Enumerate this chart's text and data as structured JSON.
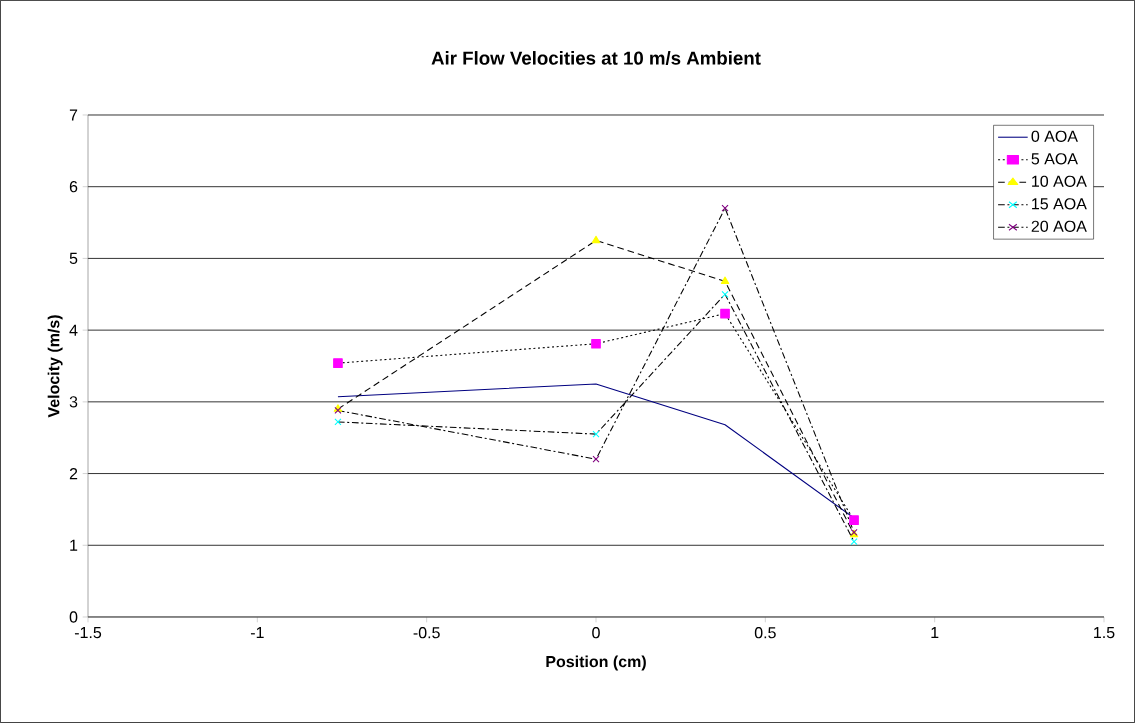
{
  "chart_data": {
    "type": "line",
    "title": "Air Flow Velocities at 10 m/s Ambient",
    "xlabel": "Position (cm)",
    "ylabel": "Velocity (m/s)",
    "x": [
      -0.762,
      0,
      0.381,
      0.762
    ],
    "series": [
      {
        "name": "0 AOA",
        "color": "#000080",
        "marker": "none",
        "line_style": "solid",
        "values": [
          3.07,
          3.25,
          2.68,
          1.38
        ]
      },
      {
        "name": "5 AOA",
        "color": "#ff00ff",
        "marker": "square",
        "line_style": "dotted",
        "values": [
          3.54,
          3.81,
          4.23,
          1.35
        ]
      },
      {
        "name": "10 AOA",
        "color": "#ffff00",
        "marker": "triangle",
        "line_style": "dashed",
        "values": [
          2.9,
          5.25,
          4.68,
          1.15
        ]
      },
      {
        "name": "15 AOA",
        "color": "#00ffff",
        "marker": "cross",
        "line_style": "dashdot",
        "values": [
          2.72,
          2.55,
          4.5,
          1.05
        ]
      },
      {
        "name": "20 AOA",
        "color": "#800080",
        "marker": "cross",
        "line_style": "dashdot",
        "values": [
          2.88,
          2.2,
          5.7,
          1.18
        ]
      }
    ],
    "xlim": [
      -1.5,
      1.5
    ],
    "xticks": [
      -1.5,
      -1,
      -0.5,
      0,
      0.5,
      1,
      1.5
    ],
    "ylim": [
      0,
      7
    ],
    "yticks": [
      0,
      1,
      2,
      3,
      4,
      5,
      6,
      7
    ],
    "grid": "y",
    "legend": "top right"
  }
}
